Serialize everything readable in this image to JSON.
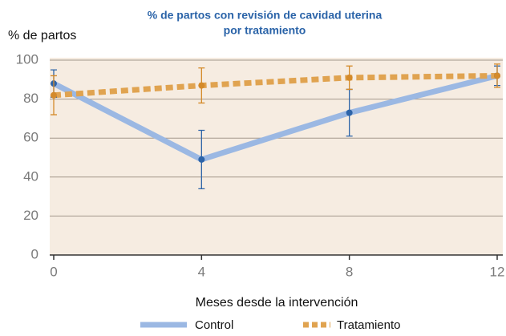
{
  "chart_data": {
    "type": "line",
    "title": [
      "% de partos con revisión de cavidad uterina",
      "por tratamiento"
    ],
    "ylabel": "% de partos",
    "xlabel": "Meses desde la intervención",
    "x": [
      0,
      4,
      8,
      12
    ],
    "series": [
      {
        "name": "Control",
        "color": "#9bb8e3",
        "marker_color": "#2d64a8",
        "values": [
          88,
          49,
          73,
          92
        ],
        "errors": [
          7,
          15,
          12,
          5
        ]
      },
      {
        "name": "Tratamiento",
        "color": "#e0a350",
        "marker_color": "#d48a2a",
        "dashed": true,
        "values": [
          82,
          87,
          91,
          92
        ],
        "errors": [
          10,
          9,
          6,
          6
        ]
      }
    ],
    "xlim": [
      0,
      12
    ],
    "xticks": [
      0,
      4,
      8,
      12
    ],
    "ylim": [
      0,
      100
    ],
    "yticks": [
      0,
      20,
      40,
      60,
      80,
      100
    ],
    "grid": true,
    "legend": "bottom"
  }
}
